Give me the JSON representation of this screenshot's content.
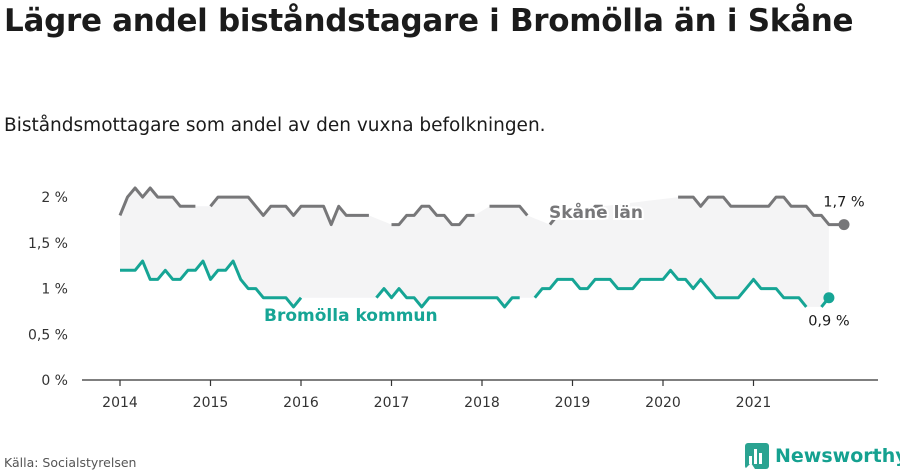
{
  "title": "Lägre andel biståndstagare i Bromölla än i Skåne",
  "subtitle": "Biståndsmottagare som andel av den vuxna befolkningen.",
  "source": "Källa: Socialstyrelsen",
  "logo_text": "Newsworthy",
  "colors": {
    "skane": "#777779",
    "bromolla": "#16a595",
    "band": "#f4f4f5",
    "axis": "#333333"
  },
  "chart_data": {
    "type": "line",
    "y_unit": "%",
    "ylim": [
      0,
      2.1
    ],
    "yticks": [
      0,
      0.5,
      1,
      1.5,
      2
    ],
    "ytick_labels": [
      "0 %",
      "0,5 %",
      "1 %",
      "1,5 %",
      "2 %"
    ],
    "xticks": [
      2014,
      2015,
      2016,
      2017,
      2018,
      2019,
      2020,
      2021
    ],
    "xtick_labels": [
      "2014",
      "2015",
      "2016",
      "2017",
      "2018",
      "2019",
      "2020",
      "2021"
    ],
    "x_start": "2014-01",
    "series": [
      {
        "name": "Skåne län",
        "key": "skane",
        "style": "dashed-gaps",
        "end_label": "1,7 %",
        "values": [
          1.8,
          2.0,
          2.1,
          2.0,
          2.1,
          2.0,
          2.0,
          2.0,
          1.9,
          1.9,
          1.9,
          null,
          1.9,
          2.0,
          2.0,
          2.0,
          2.0,
          2.0,
          1.9,
          1.8,
          1.9,
          1.9,
          1.9,
          1.8,
          1.9,
          1.9,
          1.9,
          1.9,
          1.7,
          1.9,
          1.8,
          1.8,
          1.8,
          1.8,
          null,
          null,
          1.7,
          1.7,
          1.8,
          1.8,
          1.9,
          1.9,
          1.8,
          1.8,
          1.7,
          1.7,
          1.8,
          1.8,
          null,
          1.9,
          1.9,
          1.9,
          1.9,
          1.9,
          1.8,
          null,
          null,
          1.7,
          1.8,
          1.8,
          1.8,
          1.8,
          1.8,
          1.9,
          1.9,
          null,
          null,
          null,
          null,
          null,
          null,
          null,
          null,
          null,
          2.0,
          2.0,
          2.0,
          1.9,
          2.0,
          2.0,
          2.0,
          1.9,
          1.9,
          1.9,
          1.9,
          1.9,
          1.9,
          2.0,
          2.0,
          1.9,
          1.9,
          1.9,
          1.8,
          1.8,
          1.7,
          1.7,
          1.7
        ]
      },
      {
        "name": "Bromölla kommun",
        "key": "bromolla",
        "style": "solid-gaps",
        "end_label": "0,9 %",
        "values": [
          1.2,
          1.2,
          1.2,
          1.3,
          1.1,
          1.1,
          1.2,
          1.1,
          1.1,
          1.2,
          1.2,
          1.3,
          1.1,
          1.2,
          1.2,
          1.3,
          1.1,
          1.0,
          1.0,
          0.9,
          0.9,
          0.9,
          0.9,
          0.8,
          0.9,
          null,
          null,
          null,
          null,
          null,
          null,
          null,
          null,
          null,
          0.9,
          1.0,
          0.9,
          1.0,
          0.9,
          0.9,
          0.8,
          0.9,
          0.9,
          0.9,
          0.9,
          0.9,
          0.9,
          0.9,
          0.9,
          0.9,
          0.9,
          0.8,
          0.9,
          0.9,
          null,
          0.9,
          1.0,
          1.0,
          1.1,
          1.1,
          1.1,
          1.0,
          1.0,
          1.1,
          1.1,
          1.1,
          1.0,
          1.0,
          1.0,
          1.1,
          1.1,
          1.1,
          1.1,
          1.2,
          1.1,
          1.1,
          1.0,
          1.1,
          1.0,
          0.9,
          0.9,
          0.9,
          0.9,
          1.0,
          1.1,
          1.0,
          1.0,
          1.0,
          0.9,
          0.9,
          0.9,
          0.8,
          null,
          0.8,
          0.9
        ]
      }
    ]
  }
}
